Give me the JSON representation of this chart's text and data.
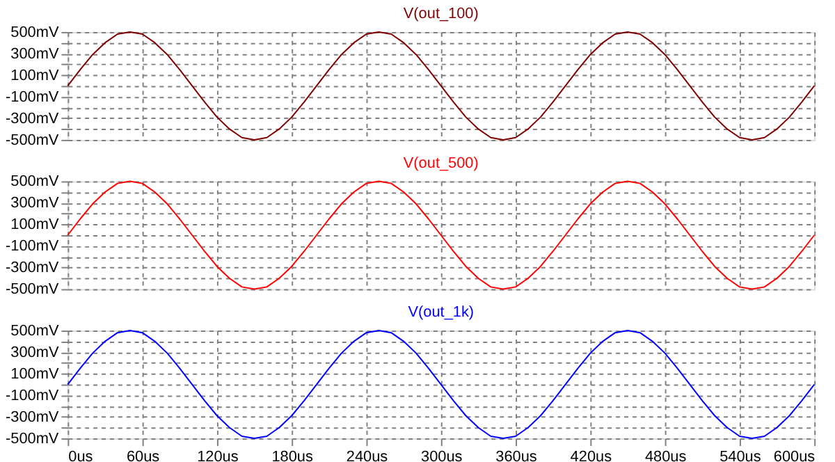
{
  "chart_data": [
    {
      "type": "line",
      "x": [
        0,
        10,
        20,
        30,
        40,
        50,
        60,
        70,
        80,
        90,
        100,
        110,
        120,
        130,
        140,
        150,
        160,
        170,
        180,
        190,
        200,
        210,
        220,
        230,
        240,
        250,
        260,
        270,
        280,
        290,
        300,
        310,
        320,
        330,
        340,
        350,
        360,
        370,
        380,
        390,
        400,
        410,
        420,
        430,
        440,
        450,
        460,
        470,
        480,
        490,
        500,
        510,
        520,
        530,
        540,
        550,
        560,
        570,
        580,
        590,
        600
      ],
      "series": [
        {
          "name": "V(out_100)",
          "color": "#800000",
          "values": [
            0,
            150,
            290,
            400,
            480,
            500,
            480,
            400,
            290,
            150,
            0,
            -150,
            -290,
            -400,
            -480,
            -500,
            -480,
            -400,
            -290,
            -150,
            0,
            150,
            290,
            400,
            480,
            500,
            480,
            400,
            290,
            150,
            0,
            -150,
            -290,
            -400,
            -480,
            -500,
            -480,
            -400,
            -290,
            -150,
            0,
            150,
            290,
            400,
            480,
            500,
            480,
            400,
            290,
            150,
            0,
            -150,
            -290,
            -400,
            -480,
            -500,
            -480,
            -400,
            -290,
            -150,
            0
          ]
        }
      ],
      "xlim": [
        0,
        600
      ],
      "xticks": [
        0,
        60,
        120,
        180,
        240,
        300,
        360,
        420,
        480,
        540,
        600
      ],
      "ylim": [
        -500,
        500
      ],
      "yticks": [
        {
          "value": -500,
          "label": "-500mV"
        },
        {
          "value": -400,
          "label": null
        },
        {
          "value": -300,
          "label": "-300mV"
        },
        {
          "value": -200,
          "label": null
        },
        {
          "value": -100,
          "label": "-100mV"
        },
        {
          "value": 0,
          "label": null
        },
        {
          "value": 100,
          "label": "100mV"
        },
        {
          "value": 200,
          "label": null
        },
        {
          "value": 300,
          "label": "300mV"
        },
        {
          "value": 400,
          "label": null
        },
        {
          "value": 500,
          "label": "500mV"
        }
      ],
      "tick_labels": "y",
      "grid": true,
      "marker": "none",
      "line_style": "solid"
    },
    {
      "type": "line",
      "x": [
        0,
        10,
        20,
        30,
        40,
        50,
        60,
        70,
        80,
        90,
        100,
        110,
        120,
        130,
        140,
        150,
        160,
        170,
        180,
        190,
        200,
        210,
        220,
        230,
        240,
        250,
        260,
        270,
        280,
        290,
        300,
        310,
        320,
        330,
        340,
        350,
        360,
        370,
        380,
        390,
        400,
        410,
        420,
        430,
        440,
        450,
        460,
        470,
        480,
        490,
        500,
        510,
        520,
        530,
        540,
        550,
        560,
        570,
        580,
        590,
        600
      ],
      "series": [
        {
          "name": "V(out_500)",
          "color": "#ff0000",
          "values": [
            0,
            150,
            290,
            400,
            480,
            500,
            480,
            400,
            290,
            150,
            0,
            -150,
            -290,
            -400,
            -480,
            -500,
            -480,
            -400,
            -290,
            -150,
            0,
            150,
            290,
            400,
            480,
            500,
            480,
            400,
            290,
            150,
            0,
            -150,
            -290,
            -400,
            -480,
            -500,
            -480,
            -400,
            -290,
            -150,
            0,
            150,
            290,
            400,
            480,
            500,
            480,
            400,
            290,
            150,
            0,
            -150,
            -290,
            -400,
            -480,
            -500,
            -480,
            -400,
            -290,
            -150,
            0
          ]
        }
      ],
      "xlim": [
        0,
        600
      ],
      "xticks": [
        0,
        60,
        120,
        180,
        240,
        300,
        360,
        420,
        480,
        540,
        600
      ],
      "ylim": [
        -500,
        500
      ],
      "yticks": [
        {
          "value": -500,
          "label": "-500mV"
        },
        {
          "value": -400,
          "label": null
        },
        {
          "value": -300,
          "label": "-300mV"
        },
        {
          "value": -200,
          "label": null
        },
        {
          "value": -100,
          "label": "-100mV"
        },
        {
          "value": 0,
          "label": null
        },
        {
          "value": 100,
          "label": "100mV"
        },
        {
          "value": 200,
          "label": null
        },
        {
          "value": 300,
          "label": "300mV"
        },
        {
          "value": 400,
          "label": null
        },
        {
          "value": 500,
          "label": "500mV"
        }
      ],
      "tick_labels": "y",
      "grid": true,
      "marker": "none",
      "line_style": "solid"
    },
    {
      "type": "line",
      "x": [
        0,
        10,
        20,
        30,
        40,
        50,
        60,
        70,
        80,
        90,
        100,
        110,
        120,
        130,
        140,
        150,
        160,
        170,
        180,
        190,
        200,
        210,
        220,
        230,
        240,
        250,
        260,
        270,
        280,
        290,
        300,
        310,
        320,
        330,
        340,
        350,
        360,
        370,
        380,
        390,
        400,
        410,
        420,
        430,
        440,
        450,
        460,
        470,
        480,
        490,
        500,
        510,
        520,
        530,
        540,
        550,
        560,
        570,
        580,
        590,
        600
      ],
      "series": [
        {
          "name": "V(out_1k)",
          "color": "#0000ff",
          "values": [
            0,
            150,
            290,
            400,
            480,
            500,
            480,
            400,
            290,
            150,
            0,
            -150,
            -290,
            -400,
            -480,
            -500,
            -480,
            -400,
            -290,
            -150,
            0,
            150,
            290,
            400,
            480,
            500,
            480,
            400,
            290,
            150,
            0,
            -150,
            -290,
            -400,
            -480,
            -500,
            -480,
            -400,
            -290,
            -150,
            0,
            150,
            290,
            400,
            480,
            500,
            480,
            400,
            290,
            150,
            0,
            -150,
            -290,
            -400,
            -480,
            -500,
            -480,
            -400,
            -290,
            -150,
            0
          ]
        }
      ],
      "xlim": [
        0,
        600
      ],
      "xticks": [
        {
          "value": 0,
          "label": "0us"
        },
        {
          "value": 60,
          "label": "60us"
        },
        {
          "value": 120,
          "label": "120us"
        },
        {
          "value": 180,
          "label": "180us"
        },
        {
          "value": 240,
          "label": "240us"
        },
        {
          "value": 300,
          "label": "300us"
        },
        {
          "value": 360,
          "label": "360us"
        },
        {
          "value": 420,
          "label": "420us"
        },
        {
          "value": 480,
          "label": "480us"
        },
        {
          "value": 540,
          "label": "540us"
        },
        {
          "value": 600,
          "label": "600us"
        }
      ],
      "ylim": [
        -500,
        500
      ],
      "yticks": [
        {
          "value": -500,
          "label": "-500mV"
        },
        {
          "value": -400,
          "label": null
        },
        {
          "value": -300,
          "label": "-300mV"
        },
        {
          "value": -200,
          "label": null
        },
        {
          "value": -100,
          "label": "-100mV"
        },
        {
          "value": 0,
          "label": null
        },
        {
          "value": 100,
          "label": "100mV"
        },
        {
          "value": 200,
          "label": null
        },
        {
          "value": 300,
          "label": "300mV"
        },
        {
          "value": 400,
          "label": null
        },
        {
          "value": 500,
          "label": "500mV"
        }
      ],
      "grid": true,
      "marker": "none",
      "line_style": "solid"
    }
  ]
}
